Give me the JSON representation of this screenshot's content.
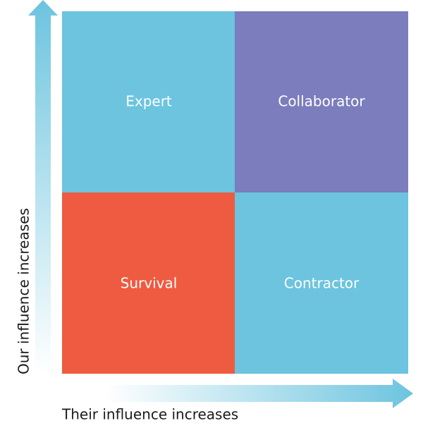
{
  "quadrants": [
    {
      "label": "Expert"
    },
    {
      "label": "Collaborator"
    },
    {
      "label": "Survival"
    },
    {
      "label": "Contractor"
    }
  ],
  "y_axis": {
    "label": "Our influence increases"
  },
  "x_axis": {
    "label": "Their influence increases"
  }
}
